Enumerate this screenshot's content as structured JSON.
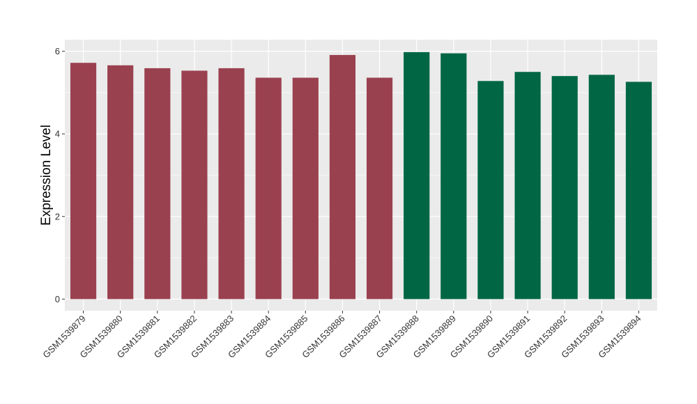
{
  "chart_data": {
    "type": "bar",
    "title": "",
    "xlabel": "",
    "ylabel": "Expression Level",
    "ylim": [
      -0.28,
      6.28
    ],
    "yticks": [
      0,
      2,
      4,
      6
    ],
    "grid": true,
    "legend": "none",
    "colors": {
      "group_a": "#9A414F",
      "group_b": "#006644",
      "panel": "#EBEBEB",
      "grid": "#FFFFFF"
    },
    "categories": [
      "GSM1539879",
      "GSM1539880",
      "GSM1539881",
      "GSM1539882",
      "GSM1539883",
      "GSM1539884",
      "GSM1539885",
      "GSM1539886",
      "GSM1539887",
      "GSM1539888",
      "GSM1539889",
      "GSM1539890",
      "GSM1539891",
      "GSM1539892",
      "GSM1539893",
      "GSM1539894"
    ],
    "values": [
      5.72,
      5.66,
      5.59,
      5.53,
      5.59,
      5.36,
      5.36,
      5.91,
      5.36,
      5.98,
      5.95,
      5.28,
      5.5,
      5.4,
      5.43,
      5.26
    ],
    "groups": [
      "a",
      "a",
      "a",
      "a",
      "a",
      "a",
      "a",
      "a",
      "a",
      "b",
      "b",
      "b",
      "b",
      "b",
      "b",
      "b"
    ]
  }
}
